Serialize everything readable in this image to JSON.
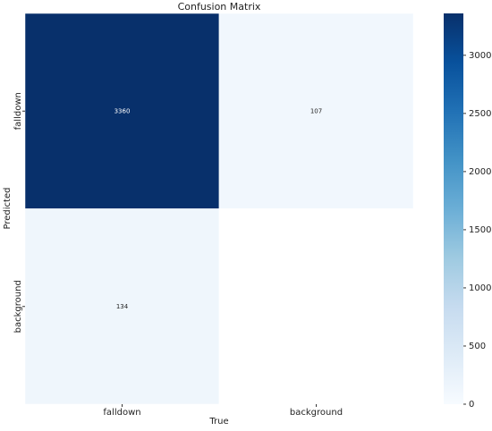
{
  "chart_data": {
    "type": "heatmap",
    "title": "Confusion Matrix",
    "x_label": "True",
    "y_label": "Predicted",
    "x_categories": [
      "falldown",
      "background"
    ],
    "y_categories": [
      "falldown",
      "background"
    ],
    "values": [
      [
        3360,
        107
      ],
      [
        134,
        null
      ]
    ],
    "colormap": "Blues",
    "clim": [
      0,
      3360
    ],
    "cticks": [
      0,
      500,
      1000,
      1500,
      2000,
      2500,
      3000
    ]
  }
}
